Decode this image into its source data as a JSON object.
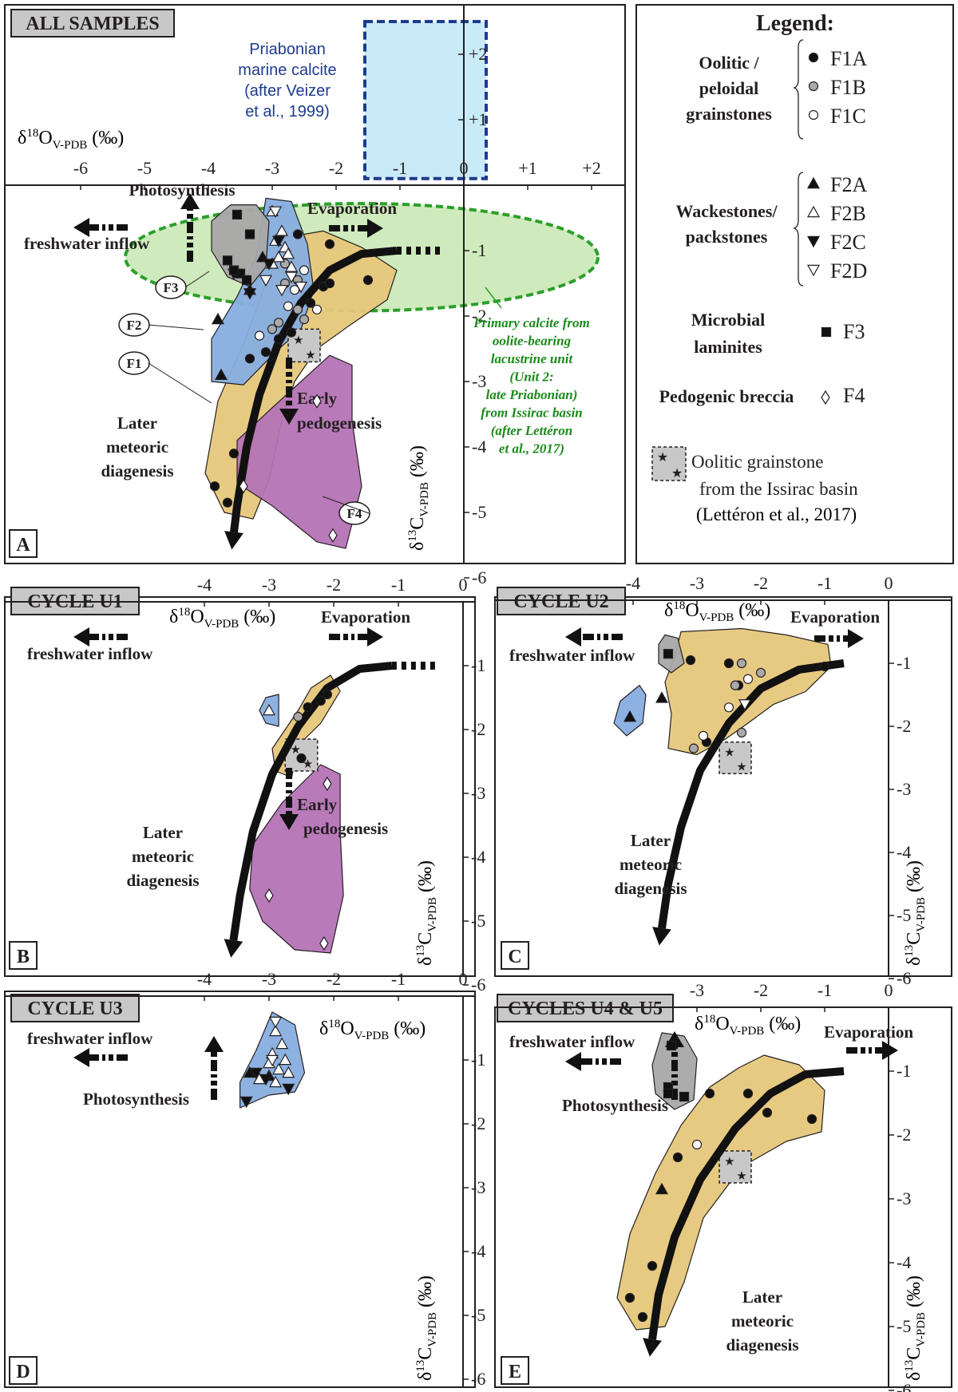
{
  "figure": {
    "colors": {
      "f1_field": "#e6c77a",
      "f2_field": "#87aee0",
      "f3_field": "#a8a8a8",
      "f4_field": "#b573b5",
      "priabonian_box_fill": "#c9ebf8",
      "priabonian_box_stroke": "#1e3b8f",
      "lacustrine_fill": "#bfe3a6",
      "lacustrine_stroke": "#2aa02a",
      "text_blue": "#1e3b8f",
      "text_green": "#1a8a1a",
      "issirac_box_fill": "#c8c8c8",
      "panel_label_fill": "#c8c8c8"
    },
    "annotations": {
      "photosynthesis": "Photosynthesis",
      "evaporation": "Evaporation",
      "freshwater_inflow": "freshwater inflow",
      "early_pedogenesis": [
        "Early",
        "pedogenesis"
      ],
      "later_meteoric": [
        "Later",
        "meteoric",
        "diagenesis"
      ],
      "priabonian": [
        "Priabonian",
        "marine calcite",
        "(after Veizer",
        "et al., 1999)"
      ],
      "lacustrine": [
        "Primary calcite from",
        "oolite-bearing",
        "lacustrine unit",
        "(Unit 2:",
        "late Priabonian)",
        "from Issirac basin",
        "(after Lettéron",
        "et al., 2017)"
      ],
      "f1": "F1",
      "f2": "F2",
      "f3": "F3",
      "f4": "F4"
    },
    "axis_labels": {
      "x_main": "δ18OV-PDB (‰)",
      "y_main": "δ13CV-PDB (‰)"
    },
    "legend": {
      "title": "Legend:",
      "groups": [
        {
          "label": [
            "Oolitic /",
            "peloidal",
            "grainstones"
          ],
          "items": [
            {
              "symbol": "circle-black",
              "label": "F1A"
            },
            {
              "symbol": "circle-grey",
              "label": "F1B"
            },
            {
              "symbol": "circle-white",
              "label": "F1C"
            }
          ]
        },
        {
          "label": [
            "Wackestones/",
            "packstones"
          ],
          "items": [
            {
              "symbol": "triangle-up-black",
              "label": "F2A"
            },
            {
              "symbol": "triangle-up-white",
              "label": "F2B"
            },
            {
              "symbol": "triangle-down-black",
              "label": "F2C"
            },
            {
              "symbol": "triangle-down-white",
              "label": "F2D"
            }
          ]
        },
        {
          "label": [
            "Microbial",
            "laminites"
          ],
          "items": [
            {
              "symbol": "square-black",
              "label": "F3"
            }
          ]
        },
        {
          "label": [
            "Pedogenic breccia"
          ],
          "items": [
            {
              "symbol": "diamond-white",
              "label": "F4"
            }
          ]
        }
      ],
      "issirac_label": [
        "Oolitic grainstone",
        "from the Issirac basin",
        "(Lettéron et al., 2017)"
      ]
    }
  },
  "chart_data": [
    {
      "panel": "A",
      "type": "scatter",
      "title": "ALL SAMPLES",
      "xlabel": "δ18OV-PDB (‰)",
      "ylabel": "δ13CV-PDB (‰)",
      "x_ticks": [
        "-6",
        "-5",
        "-4",
        "-3",
        "-2",
        "-1",
        "0",
        "+1",
        "+2"
      ],
      "y_ticks": [
        "-1",
        "-2",
        "-3",
        "-4",
        "-5",
        "-6"
      ],
      "y_pos_ticks": [
        "+2",
        "+1"
      ],
      "xlim": [
        -6.5,
        2.6
      ],
      "ylim": [
        -6.0,
        2.5
      ],
      "series": [
        {
          "name": "F1A",
          "symbol": "circle-black",
          "points": [
            [
              -2.6,
              -0.75
            ],
            [
              -2.1,
              -0.9
            ],
            [
              -1.5,
              -1.45
            ],
            [
              -2.2,
              -1.55
            ],
            [
              -2.1,
              -1.5
            ],
            [
              -2.4,
              -1.8
            ],
            [
              -2.7,
              -2.25
            ],
            [
              -3.1,
              -2.55
            ],
            [
              -3.35,
              -2.65
            ],
            [
              -3.6,
              -4.1
            ],
            [
              -3.9,
              -4.6
            ],
            [
              -3.7,
              -4.85
            ],
            [
              -2.9,
              -2.35
            ]
          ]
        },
        {
          "name": "F1B",
          "symbol": "circle-grey",
          "points": [
            [
              -2.7,
              -1.3
            ],
            [
              -2.6,
              -1.45
            ],
            [
              -2.8,
              -1.2
            ],
            [
              -3.0,
              -2.2
            ],
            [
              -2.5,
              -2.05
            ],
            [
              -2.8,
              -1.5
            ],
            [
              -2.6,
              -1.9
            ],
            [
              -2.9,
              -2.1
            ]
          ]
        },
        {
          "name": "F1C",
          "symbol": "circle-white",
          "points": [
            [
              -2.5,
              -1.3
            ],
            [
              -3.2,
              -2.3
            ],
            [
              -2.75,
              -1.85
            ],
            [
              -2.3,
              -1.9
            ],
            [
              -2.65,
              -1.6
            ]
          ]
        },
        {
          "name": "F2A",
          "symbol": "triangle-up-black",
          "points": [
            [
              -3.15,
              -1.1
            ],
            [
              -3.85,
              -2.05
            ],
            [
              -3.8,
              -2.9
            ],
            [
              -3.35,
              -1.6
            ]
          ]
        },
        {
          "name": "F2B",
          "symbol": "triangle-up-white",
          "points": [
            [
              -3.0,
              -0.4
            ],
            [
              -2.95,
              -0.85
            ],
            [
              -2.8,
              -0.95
            ],
            [
              -2.9,
              -1.1
            ],
            [
              -3.0,
              -1.2
            ],
            [
              -2.7,
              -1.25
            ],
            [
              -2.85,
              -0.7
            ],
            [
              -2.75,
              -1.05
            ]
          ]
        },
        {
          "name": "F2C",
          "symbol": "triangle-down-black",
          "points": [
            [
              -3.35,
              -1.65
            ],
            [
              -3.05,
              -1.2
            ],
            [
              -3.6,
              -1.35
            ],
            [
              -2.9,
              -0.85
            ]
          ]
        },
        {
          "name": "F2D",
          "symbol": "triangle-down-white",
          "points": [
            [
              -2.95,
              -0.4
            ],
            [
              -2.7,
              -1.4
            ],
            [
              -2.55,
              -1.55
            ],
            [
              -2.85,
              -1.6
            ],
            [
              -3.1,
              -1.45
            ]
          ]
        },
        {
          "name": "F3",
          "symbol": "square-black",
          "points": [
            [
              -3.55,
              -0.45
            ],
            [
              -3.35,
              -0.75
            ],
            [
              -3.7,
              -1.15
            ],
            [
              -3.5,
              -1.35
            ],
            [
              -3.4,
              -1.45
            ],
            [
              -3.6,
              -1.3
            ]
          ]
        },
        {
          "name": "F4",
          "symbol": "diamond-white",
          "points": [
            [
              -2.3,
              -3.3
            ],
            [
              -3.45,
              -4.6
            ],
            [
              -2.05,
              -5.35
            ]
          ]
        }
      ]
    },
    {
      "panel": "B",
      "type": "scatter",
      "title": "CYCLE U1",
      "x_ticks": [
        "-4",
        "-3",
        "-2",
        "-1",
        "0"
      ],
      "y_ticks": [
        "-1",
        "-2",
        "-3",
        "-4",
        "-5",
        "-6"
      ],
      "xlim": [
        -4.8,
        0.2
      ],
      "ylim": [
        -6.0,
        0.2
      ],
      "series": [
        {
          "name": "F1A",
          "symbol": "circle-black",
          "points": [
            [
              -2.4,
              -1.65
            ],
            [
              -2.2,
              -1.55
            ],
            [
              -2.1,
              -1.45
            ],
            [
              -2.5,
              -2.45
            ]
          ]
        },
        {
          "name": "F1B",
          "symbol": "circle-grey",
          "points": [
            [
              -2.55,
              -1.8
            ]
          ]
        },
        {
          "name": "F2B",
          "symbol": "triangle-up-white",
          "points": [
            [
              -3.0,
              -1.7
            ]
          ]
        },
        {
          "name": "F4",
          "symbol": "diamond-white",
          "points": [
            [
              -2.1,
              -2.85
            ],
            [
              -3.0,
              -4.6
            ],
            [
              -2.15,
              -5.35
            ]
          ]
        }
      ]
    },
    {
      "panel": "C",
      "type": "scatter",
      "title": "CYCLE U2",
      "x_ticks": [
        "-4",
        "-3",
        "-2",
        "-1",
        "0"
      ],
      "y_ticks": [
        "-1",
        "-2",
        "-3",
        "-4",
        "-5",
        "-6"
      ],
      "xlim": [
        -4.8,
        0.2
      ],
      "ylim": [
        -6.0,
        0.2
      ],
      "series": [
        {
          "name": "F1A",
          "symbol": "circle-black",
          "points": [
            [
              -3.1,
              -0.95
            ],
            [
              -2.5,
              -1.0
            ],
            [
              -1.0,
              -1.05
            ],
            [
              -2.35,
              -1.35
            ],
            [
              -2.85,
              -2.25
            ]
          ]
        },
        {
          "name": "F1B",
          "symbol": "circle-grey",
          "points": [
            [
              -2.3,
              -1.0
            ],
            [
              -2.0,
              -1.15
            ],
            [
              -2.4,
              -1.35
            ],
            [
              -2.3,
              -2.1
            ],
            [
              -3.05,
              -2.35
            ]
          ]
        },
        {
          "name": "F1C",
          "symbol": "circle-white",
          "points": [
            [
              -2.2,
              -1.25
            ],
            [
              -2.9,
              -2.15
            ],
            [
              -2.5,
              -1.7
            ]
          ]
        },
        {
          "name": "F2A",
          "symbol": "triangle-up-black",
          "points": [
            [
              -3.55,
              -1.55
            ],
            [
              -4.05,
              -1.85
            ]
          ]
        },
        {
          "name": "F2D",
          "symbol": "triangle-down-white",
          "points": [
            [
              -2.25,
              -1.65
            ]
          ]
        },
        {
          "name": "F3",
          "symbol": "square-black",
          "points": [
            [
              -3.45,
              -0.85
            ]
          ]
        }
      ]
    },
    {
      "panel": "D",
      "type": "scatter",
      "title": "CYCLE U3",
      "x_ticks": [
        "-4",
        "-3",
        "-2",
        "-1",
        "0"
      ],
      "y_ticks": [
        "-1",
        "-2",
        "-3",
        "-4",
        "-5",
        "-6"
      ],
      "xlim": [
        -4.8,
        0.2
      ],
      "ylim": [
        -6.0,
        0.2
      ],
      "series": [
        {
          "name": "F2A",
          "symbol": "triangle-up-black",
          "points": [
            [
              -3.3,
              -1.2
            ],
            [
              -3.0,
              -1.25
            ]
          ]
        },
        {
          "name": "F2B",
          "symbol": "triangle-up-white",
          "points": [
            [
              -2.9,
              -0.55
            ],
            [
              -2.8,
              -0.75
            ],
            [
              -2.95,
              -0.9
            ],
            [
              -2.75,
              -1.0
            ],
            [
              -3.0,
              -1.05
            ],
            [
              -2.85,
              -1.15
            ],
            [
              -2.7,
              -1.2
            ],
            [
              -3.15,
              -1.3
            ],
            [
              -2.9,
              -1.35
            ]
          ]
        },
        {
          "name": "F2C",
          "symbol": "triangle-down-black",
          "points": [
            [
              -3.35,
              -1.65
            ],
            [
              -3.05,
              -1.3
            ],
            [
              -2.7,
              -1.45
            ],
            [
              -3.2,
              -1.2
            ]
          ]
        },
        {
          "name": "F2D",
          "symbol": "triangle-down-white",
          "points": [
            [
              -2.9,
              -0.4
            ],
            [
              -2.95,
              -1.0
            ]
          ]
        }
      ]
    },
    {
      "panel": "E",
      "type": "scatter",
      "title": "CYCLES U4 & U5",
      "x_ticks": [
        "-3",
        "-2",
        "-1",
        "0"
      ],
      "y_ticks": [
        "-1",
        "-2",
        "-3",
        "-4",
        "-5",
        "-6"
      ],
      "xlim": [
        -4.8,
        0.2
      ],
      "ylim": [
        -6.0,
        0.2
      ],
      "series": [
        {
          "name": "F1A",
          "symbol": "circle-black",
          "points": [
            [
              -2.8,
              -1.35
            ],
            [
              -2.2,
              -1.35
            ],
            [
              -1.9,
              -1.65
            ],
            [
              -1.2,
              -1.75
            ],
            [
              -3.3,
              -2.35
            ],
            [
              -3.7,
              -4.05
            ],
            [
              -4.05,
              -4.55
            ],
            [
              -3.85,
              -4.85
            ]
          ]
        },
        {
          "name": "F1C",
          "symbol": "circle-white",
          "points": [
            [
              -3.0,
              -2.15
            ]
          ]
        },
        {
          "name": "F2A",
          "symbol": "triangle-up-black",
          "points": [
            [
              -3.55,
              -2.85
            ]
          ]
        },
        {
          "name": "F3",
          "symbol": "square-black",
          "points": [
            [
              -3.4,
              -0.6
            ],
            [
              -3.45,
              -1.25
            ],
            [
              -3.45,
              -1.35
            ],
            [
              -3.2,
              -1.4
            ]
          ]
        }
      ]
    }
  ]
}
